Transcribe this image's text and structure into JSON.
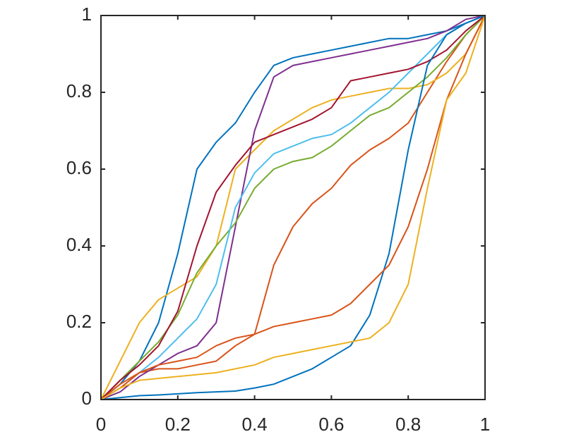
{
  "chart_data": {
    "type": "line",
    "x": [
      0,
      0.05,
      0.1,
      0.15,
      0.2,
      0.25,
      0.3,
      0.35,
      0.4,
      0.45,
      0.5,
      0.55,
      0.6,
      0.65,
      0.7,
      0.75,
      0.8,
      0.85,
      0.9,
      0.95,
      1
    ],
    "series": [
      {
        "color": "#0072BD",
        "values": [
          0,
          0.04,
          0.1,
          0.2,
          0.38,
          0.6,
          0.67,
          0.72,
          0.8,
          0.87,
          0.89,
          0.9,
          0.91,
          0.92,
          0.93,
          0.94,
          0.94,
          0.95,
          0.96,
          0.98,
          1
        ]
      },
      {
        "color": "#D95319",
        "values": [
          0,
          0.04,
          0.07,
          0.08,
          0.08,
          0.09,
          0.1,
          0.14,
          0.17,
          0.35,
          0.45,
          0.51,
          0.55,
          0.61,
          0.65,
          0.68,
          0.72,
          0.8,
          0.88,
          0.95,
          1
        ]
      },
      {
        "color": "#EDB120",
        "values": [
          0,
          0.1,
          0.2,
          0.26,
          0.29,
          0.32,
          0.4,
          0.6,
          0.65,
          0.7,
          0.73,
          0.76,
          0.78,
          0.79,
          0.8,
          0.81,
          0.81,
          0.82,
          0.85,
          0.9,
          1
        ]
      },
      {
        "color": "#7E2F8E",
        "values": [
          0,
          0.02,
          0.06,
          0.09,
          0.12,
          0.14,
          0.2,
          0.45,
          0.7,
          0.84,
          0.87,
          0.88,
          0.89,
          0.9,
          0.91,
          0.92,
          0.93,
          0.94,
          0.96,
          0.99,
          1
        ]
      },
      {
        "color": "#77AC30",
        "values": [
          0,
          0.05,
          0.1,
          0.15,
          0.22,
          0.33,
          0.4,
          0.46,
          0.55,
          0.6,
          0.62,
          0.63,
          0.66,
          0.7,
          0.74,
          0.76,
          0.8,
          0.84,
          0.89,
          0.95,
          1
        ]
      },
      {
        "color": "#4DBEEE",
        "values": [
          0,
          0.03,
          0.07,
          0.11,
          0.16,
          0.21,
          0.3,
          0.5,
          0.59,
          0.64,
          0.66,
          0.68,
          0.69,
          0.72,
          0.76,
          0.8,
          0.85,
          0.9,
          0.95,
          0.98,
          1
        ]
      },
      {
        "color": "#A2142F",
        "values": [
          0,
          0.05,
          0.09,
          0.14,
          0.23,
          0.4,
          0.54,
          0.61,
          0.67,
          0.69,
          0.71,
          0.73,
          0.76,
          0.83,
          0.84,
          0.85,
          0.86,
          0.88,
          0.91,
          0.96,
          1
        ]
      },
      {
        "color": "#0072BD",
        "values": [
          0,
          0.005,
          0.01,
          0.012,
          0.015,
          0.018,
          0.02,
          0.022,
          0.03,
          0.04,
          0.06,
          0.08,
          0.11,
          0.14,
          0.22,
          0.38,
          0.65,
          0.87,
          0.95,
          0.98,
          1
        ]
      },
      {
        "color": "#D95319",
        "values": [
          0,
          0.03,
          0.07,
          0.09,
          0.1,
          0.11,
          0.14,
          0.16,
          0.17,
          0.19,
          0.2,
          0.21,
          0.22,
          0.25,
          0.3,
          0.35,
          0.45,
          0.6,
          0.78,
          0.9,
          1
        ]
      },
      {
        "color": "#EDB120",
        "values": [
          0,
          0.03,
          0.05,
          0.055,
          0.06,
          0.065,
          0.07,
          0.08,
          0.09,
          0.11,
          0.12,
          0.13,
          0.14,
          0.15,
          0.16,
          0.2,
          0.3,
          0.55,
          0.78,
          0.85,
          1
        ]
      }
    ],
    "xlim": [
      0,
      1
    ],
    "ylim": [
      0,
      1
    ],
    "xticks": [
      0,
      0.2,
      0.4,
      0.6,
      0.8,
      1
    ],
    "yticks": [
      0,
      0.2,
      0.4,
      0.6,
      0.8,
      1
    ]
  }
}
